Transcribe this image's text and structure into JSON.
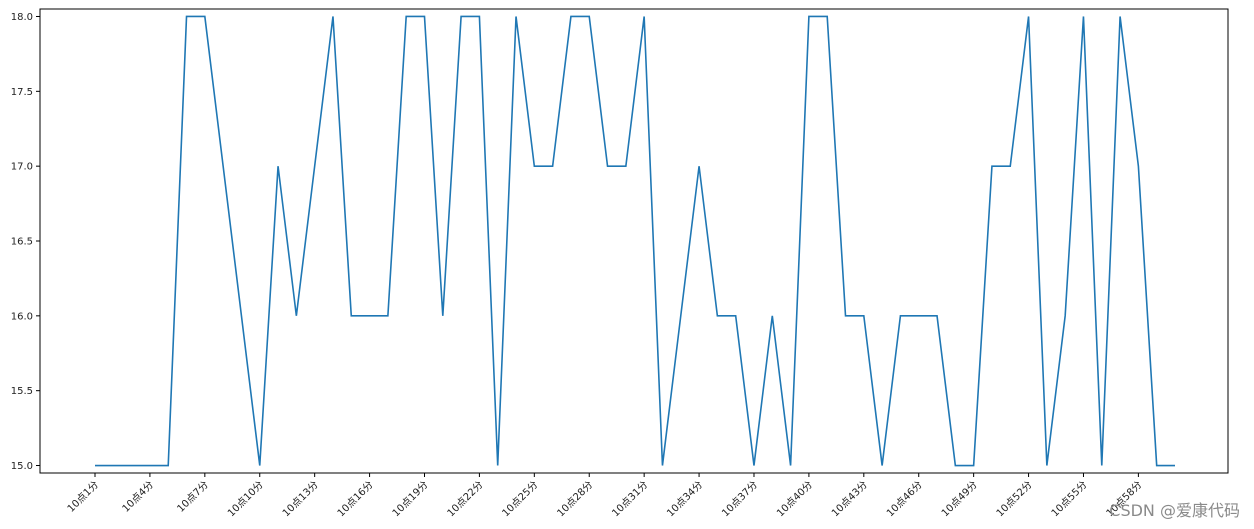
{
  "chart_data": {
    "type": "line",
    "x": [
      "10点1分",
      "10点2分",
      "10点3分",
      "10点4分",
      "10点5分",
      "10点6分",
      "10点7分",
      "10点8分",
      "10点9分",
      "10点10分",
      "10点11分",
      "10点12分",
      "10点13分",
      "10点14分",
      "10点15分",
      "10点16分",
      "10点17分",
      "10点18分",
      "10点19分",
      "10点20分",
      "10点21分",
      "10点22分",
      "10点23分",
      "10点24分",
      "10点25分",
      "10点26分",
      "10点27分",
      "10点28分",
      "10点29分",
      "10点30分",
      "10点31分",
      "10点32分",
      "10点33分",
      "10点34分",
      "10点35分",
      "10点36分",
      "10点37分",
      "10点38分",
      "10点39分",
      "10点40分",
      "10点41分",
      "10点42分",
      "10点43分",
      "10点44分",
      "10点45分",
      "10点46分",
      "10点47分",
      "10点48分",
      "10点49分",
      "10点50分",
      "10点51分",
      "10点52分",
      "10点53分",
      "10点54分",
      "10点55分",
      "10点56分",
      "10点57分",
      "10点58分",
      "10点59分",
      "10点60分"
    ],
    "xticks": [
      "10点1分",
      "10点4分",
      "10点7分",
      "10点10分",
      "10点13分",
      "10点16分",
      "10点19分",
      "10点22分",
      "10点25分",
      "10点28分",
      "10点31分",
      "10点34分",
      "10点37分",
      "10点40分",
      "10点43分",
      "10点46分",
      "10点49分",
      "10点52分",
      "10点55分",
      "10点58分"
    ],
    "series": [
      {
        "values": [
          15,
          15,
          15,
          15,
          15,
          18,
          18,
          17,
          16,
          15,
          17,
          16,
          17,
          18,
          16,
          16,
          16,
          18,
          18,
          16,
          18,
          18,
          15,
          18,
          17,
          17,
          18,
          18,
          17,
          17,
          18,
          15,
          16,
          17,
          16,
          16,
          15,
          16,
          15,
          18,
          18,
          16,
          16,
          15,
          16,
          16,
          16,
          15,
          15,
          17,
          17,
          18,
          15,
          16,
          18,
          15,
          18,
          17,
          15,
          15
        ],
        "color": "#1f77b4"
      }
    ],
    "ylim": [
      14.95,
      18.05
    ],
    "yticks": [
      "15.0",
      "15.5",
      "16.0",
      "16.5",
      "17.0",
      "17.5",
      "18.0"
    ],
    "grid": false,
    "title": "",
    "xlabel": "",
    "ylabel": ""
  },
  "watermark": "CSDN @爱康代码"
}
